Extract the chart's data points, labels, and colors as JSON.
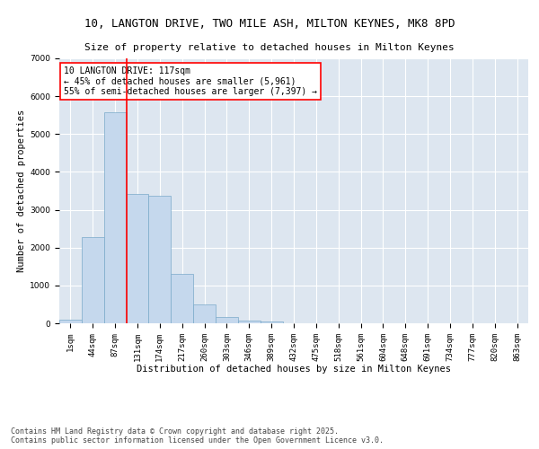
{
  "title1": "10, LANGTON DRIVE, TWO MILE ASH, MILTON KEYNES, MK8 8PD",
  "title2": "Size of property relative to detached houses in Milton Keynes",
  "xlabel": "Distribution of detached houses by size in Milton Keynes",
  "ylabel": "Number of detached properties",
  "bar_values": [
    100,
    2280,
    5580,
    3420,
    3380,
    1300,
    490,
    165,
    75,
    45,
    0,
    0,
    0,
    0,
    0,
    0,
    0,
    0,
    0,
    0,
    0
  ],
  "x_labels": [
    "1sqm",
    "44sqm",
    "87sqm",
    "131sqm",
    "174sqm",
    "217sqm",
    "260sqm",
    "303sqm",
    "346sqm",
    "389sqm",
    "432sqm",
    "475sqm",
    "518sqm",
    "561sqm",
    "604sqm",
    "648sqm",
    "691sqm",
    "734sqm",
    "777sqm",
    "820sqm",
    "863sqm"
  ],
  "bar_color": "#c5d8ed",
  "bar_edge_color": "#7aaaca",
  "vline_color": "red",
  "vline_position": 2.5,
  "annotation_text": "10 LANGTON DRIVE: 117sqm\n← 45% of detached houses are smaller (5,961)\n55% of semi-detached houses are larger (7,397) →",
  "annotation_box_color": "white",
  "annotation_box_edge_color": "red",
  "ylim": [
    0,
    7000
  ],
  "yticks": [
    0,
    1000,
    2000,
    3000,
    4000,
    5000,
    6000,
    7000
  ],
  "background_color": "#dde6f0",
  "grid_color": "white",
  "footer": "Contains HM Land Registry data © Crown copyright and database right 2025.\nContains public sector information licensed under the Open Government Licence v3.0.",
  "title_fontsize": 9,
  "subtitle_fontsize": 8,
  "axis_label_fontsize": 7.5,
  "tick_fontsize": 6.5,
  "annotation_fontsize": 7,
  "footer_fontsize": 6
}
